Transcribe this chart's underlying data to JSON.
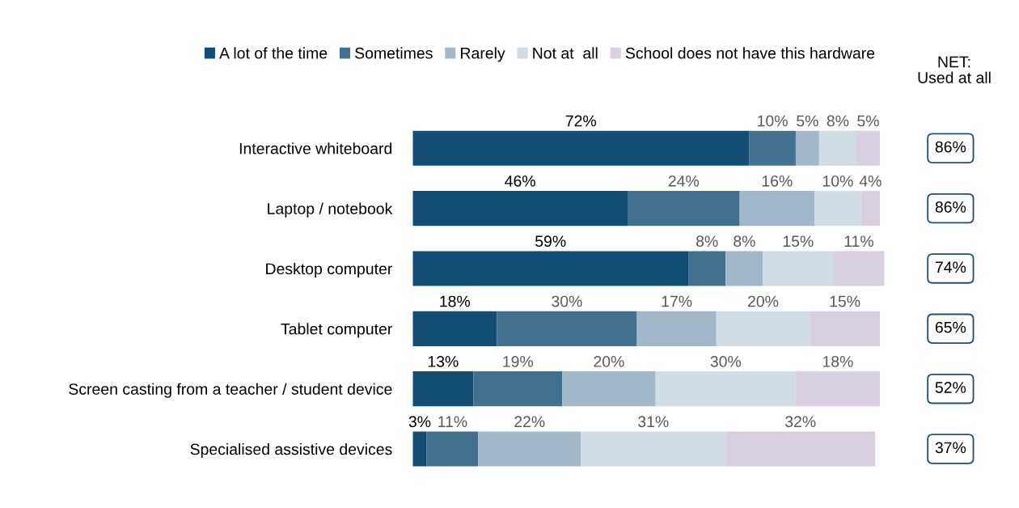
{
  "chart_data": {
    "type": "bar",
    "orientation": "horizontal",
    "stacked": true,
    "categories": [
      "Interactive whiteboard",
      "Laptop / notebook",
      "Desktop computer",
      "Tablet computer",
      "Screen casting from a teacher / student device",
      "Specialised assistive devices"
    ],
    "series": [
      {
        "name": "A lot of the time",
        "color": "#124e74",
        "values": [
          72,
          46,
          59,
          18,
          13,
          3
        ],
        "value_labels": [
          "72%",
          "46%",
          "59%",
          "18%",
          "13%",
          "3%"
        ]
      },
      {
        "name": "Sometimes",
        "color": "#41718f",
        "values": [
          10,
          24,
          8,
          30,
          19,
          11
        ],
        "value_labels": [
          "10%",
          "24%",
          "8%",
          "30%",
          "19%",
          "11%"
        ]
      },
      {
        "name": "Rarely",
        "color": "#a2b8c8",
        "values": [
          5,
          16,
          8,
          17,
          20,
          22
        ],
        "value_labels": [
          "5%",
          "16%",
          "8%",
          "17%",
          "20%",
          "22%"
        ]
      },
      {
        "name": "Not at  all",
        "color": "#d0dde5",
        "values": [
          8,
          10,
          15,
          20,
          30,
          31
        ],
        "value_labels": [
          "8%",
          "10%",
          "15%",
          "20%",
          "30%",
          "31%"
        ]
      },
      {
        "name": "School does not have this hardware",
        "color": "#d8d0e0",
        "values": [
          5,
          4,
          11,
          15,
          18,
          32
        ],
        "value_labels": [
          "5%",
          "4%",
          "11%",
          "15%",
          "18%",
          "32%"
        ]
      }
    ],
    "legend": "top",
    "grid": false,
    "annotations": [
      "NET:\nUsed at all",
      "86%",
      "86%",
      "74%",
      "65%",
      "52%",
      "37%"
    ]
  }
}
